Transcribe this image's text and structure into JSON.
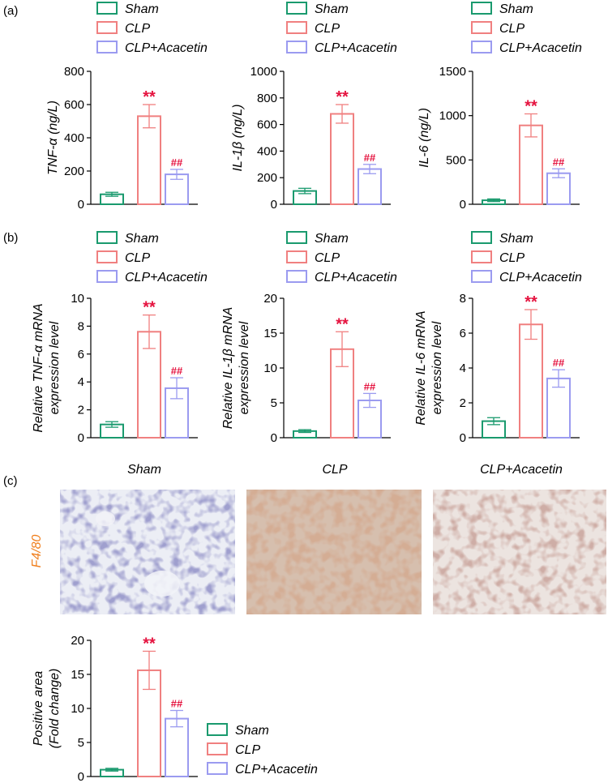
{
  "panel_labels": [
    "(a)",
    "(b)",
    "(c)"
  ],
  "groups": [
    "Sham",
    "CLP",
    "CLP+Acacetin"
  ],
  "colors": {
    "Sham": "#1a9a6e",
    "CLP": "#f08080",
    "CLP+Acacetin": "#9b9bf0"
  },
  "sig_color": "#e5133f",
  "sig_labels": [
    "**",
    "##"
  ],
  "micro": {
    "titles": [
      "Sham",
      "CLP",
      "CLP+Acacetin"
    ],
    "stain_label": "F4/80",
    "stain_color": "#f07f1e"
  },
  "chart_data": [
    {
      "id": "a1",
      "type": "bar",
      "panel": "a",
      "ylabel": [
        "TNF-α (ng/L)"
      ],
      "ylim": [
        0,
        800
      ],
      "yticks": [
        0,
        200,
        400,
        600,
        800
      ],
      "categories": [
        "Sham",
        "CLP",
        "CLP+Acacetin"
      ],
      "values": [
        60,
        530,
        180
      ],
      "errors": [
        12,
        70,
        30
      ],
      "sig": [
        "",
        "**",
        "##"
      ]
    },
    {
      "id": "a2",
      "type": "bar",
      "panel": "a",
      "ylabel": [
        "IL-1β (ng/L)"
      ],
      "ylim": [
        0,
        1000
      ],
      "yticks": [
        0,
        200,
        400,
        600,
        800,
        1000
      ],
      "categories": [
        "Sham",
        "CLP",
        "CLP+Acacetin"
      ],
      "values": [
        100,
        680,
        265
      ],
      "errors": [
        20,
        70,
        35
      ],
      "sig": [
        "",
        "**",
        "##"
      ]
    },
    {
      "id": "a3",
      "type": "bar",
      "panel": "a",
      "ylabel": [
        "IL-6 (ng/L)"
      ],
      "ylim": [
        0,
        1500
      ],
      "yticks": [
        0,
        500,
        1000,
        1500
      ],
      "categories": [
        "Sham",
        "CLP",
        "CLP+Acacetin"
      ],
      "values": [
        45,
        890,
        350
      ],
      "errors": [
        15,
        130,
        50
      ],
      "sig": [
        "",
        "**",
        "##"
      ]
    },
    {
      "id": "b1",
      "type": "bar",
      "panel": "b",
      "ylabel": [
        "Relative TNF-α mRNA",
        "expression level"
      ],
      "ylim": [
        0,
        10
      ],
      "yticks": [
        0,
        2,
        4,
        6,
        8,
        10
      ],
      "categories": [
        "Sham",
        "CLP",
        "CLP+Acacetin"
      ],
      "values": [
        0.95,
        7.6,
        3.55
      ],
      "errors": [
        0.2,
        1.2,
        0.75
      ],
      "sig": [
        "",
        "**",
        "##"
      ]
    },
    {
      "id": "b2",
      "type": "bar",
      "panel": "b",
      "ylabel": [
        "Relative IL-1β mRNA",
        "expression level"
      ],
      "ylim": [
        0,
        20
      ],
      "yticks": [
        0,
        5,
        10,
        15,
        20
      ],
      "categories": [
        "Sham",
        "CLP",
        "CLP+Acacetin"
      ],
      "values": [
        0.95,
        12.7,
        5.35
      ],
      "errors": [
        0.2,
        2.5,
        1.0
      ],
      "sig": [
        "",
        "**",
        "##"
      ]
    },
    {
      "id": "b3",
      "type": "bar",
      "panel": "b",
      "ylabel": [
        "Relative IL-6 mRNA",
        "expression level"
      ],
      "ylim": [
        0,
        8
      ],
      "yticks": [
        0,
        2,
        4,
        6,
        8
      ],
      "categories": [
        "Sham",
        "CLP",
        "CLP+Acacetin"
      ],
      "values": [
        0.95,
        6.5,
        3.4
      ],
      "errors": [
        0.2,
        0.85,
        0.5
      ],
      "sig": [
        "",
        "**",
        "##"
      ]
    },
    {
      "id": "c1",
      "type": "bar",
      "panel": "c",
      "ylabel": [
        "Positive area",
        "(Fold change)"
      ],
      "ylim": [
        0,
        20
      ],
      "yticks": [
        0,
        5,
        10,
        15,
        20
      ],
      "categories": [
        "Sham",
        "CLP",
        "CLP+Acacetin"
      ],
      "values": [
        1.0,
        15.6,
        8.5
      ],
      "errors": [
        0.2,
        2.8,
        1.2
      ],
      "sig": [
        "",
        "**",
        "##"
      ]
    }
  ]
}
